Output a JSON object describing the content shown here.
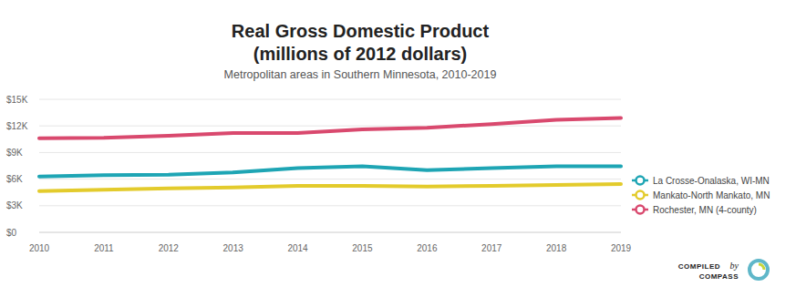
{
  "chart_data": {
    "type": "line",
    "title": "Real Gross Domestic Product",
    "subtitle": "(millions of 2012 dollars)",
    "caption": "Metropolitan areas in Southern Minnesota, 2010-2019",
    "categories": [
      "2010",
      "2011",
      "2012",
      "2013",
      "2014",
      "2015",
      "2016",
      "2017",
      "2018",
      "2019"
    ],
    "series": [
      {
        "name": "La Crosse-Onalaska, WI-MN",
        "color": "#1ea5b4",
        "values": [
          6300,
          6450,
          6500,
          6750,
          7250,
          7450,
          7000,
          7250,
          7450,
          7450
        ]
      },
      {
        "name": "Mankato-North Mankato, MN",
        "color": "#e3cb2c",
        "values": [
          4650,
          4800,
          4950,
          5050,
          5250,
          5250,
          5150,
          5250,
          5350,
          5450
        ]
      },
      {
        "name": "Rochester, MN (4-county)",
        "color": "#d9496e",
        "values": [
          10600,
          10650,
          10900,
          11200,
          11200,
          11600,
          11800,
          12200,
          12700,
          12900
        ]
      }
    ],
    "ylim": [
      0,
      15000
    ],
    "yticks": [
      {
        "value": 0,
        "label": "$0"
      },
      {
        "value": 3000,
        "label": "$3K"
      },
      {
        "value": 6000,
        "label": "$6K"
      },
      {
        "value": 9000,
        "label": "$9K"
      },
      {
        "value": 12000,
        "label": "$12K"
      },
      {
        "value": 15000,
        "label": "$15K"
      }
    ],
    "grid": true,
    "legend": "right",
    "annotations": [
      "COMPILED",
      "by",
      "COMPASS"
    ]
  }
}
